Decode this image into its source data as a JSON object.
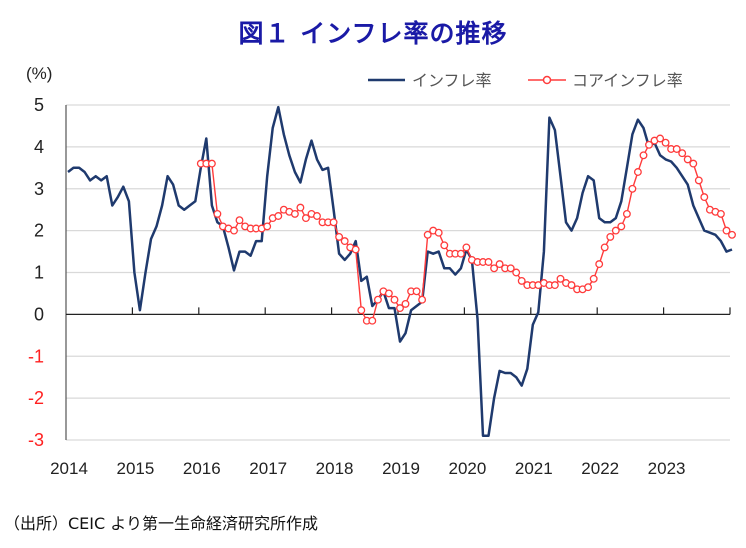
{
  "title": "図１ インフレ率の推移",
  "source": "（出所）CEIC より第一生命経済研究所作成",
  "colors": {
    "inflation": "#1f3a6e",
    "core": "#ff3b3b",
    "title": "#1a1aa6",
    "negative_tick": "#ff2020",
    "positive_tick": "#222222"
  },
  "chart_data": {
    "type": "line",
    "title": "図１ インフレ率の推移",
    "ylabel": "(%)",
    "xlabel": "",
    "ylim": [
      -3,
      5
    ],
    "yticks": [
      "5",
      "4",
      "3",
      "2",
      "1",
      "0",
      "-1",
      "-2",
      "-3"
    ],
    "ytick_values": [
      5,
      4,
      3,
      2,
      1,
      0,
      -1,
      -2,
      -3
    ],
    "xticks": [
      "2014",
      "2015",
      "2016",
      "2017",
      "2018",
      "2019",
      "2020",
      "2021",
      "2022",
      "2023"
    ],
    "x_start": "2014-01",
    "x_frequency": "monthly",
    "grid": true,
    "legend_position": "top-right",
    "series": [
      {
        "name": "インフレ率",
        "marker": "none",
        "start_month_index": 0,
        "values": [
          3.4,
          3.5,
          3.5,
          3.4,
          3.2,
          3.3,
          3.2,
          3.3,
          2.6,
          2.8,
          3.05,
          2.7,
          1.0,
          0.1,
          1.0,
          1.8,
          2.1,
          2.6,
          3.3,
          3.1,
          2.6,
          2.5,
          2.6,
          2.7,
          3.5,
          4.2,
          2.6,
          2.2,
          2.1,
          1.6,
          1.05,
          1.5,
          1.5,
          1.4,
          1.75,
          1.75,
          3.3,
          4.45,
          4.95,
          4.3,
          3.8,
          3.4,
          3.15,
          3.7,
          4.15,
          3.7,
          3.45,
          3.5,
          2.5,
          1.45,
          1.3,
          1.45,
          1.75,
          0.8,
          0.9,
          0.2,
          0.35,
          0.55,
          0.15,
          0.15,
          -0.65,
          -0.45,
          0.1,
          0.2,
          0.3,
          1.5,
          1.45,
          1.5,
          1.1,
          1.1,
          0.95,
          1.1,
          1.55,
          1.3,
          -0.1,
          -2.9,
          -2.9,
          -2.0,
          -1.35,
          -1.4,
          -1.4,
          -1.5,
          -1.7,
          -1.3,
          -0.25,
          0.05,
          1.5,
          4.7,
          4.4,
          3.3,
          2.2,
          2.0,
          2.3,
          2.9,
          3.3,
          3.2,
          2.3,
          2.2,
          2.2,
          2.3,
          2.7,
          3.5,
          4.3,
          4.65,
          4.45,
          4.0,
          4.1,
          3.8,
          3.7,
          3.65,
          3.5,
          3.3,
          3.1,
          2.6,
          2.3,
          2.0,
          1.95,
          1.9,
          1.75,
          1.5,
          1.55
        ]
      },
      {
        "name": "コアインフレ率",
        "marker": "circle",
        "start_month_index": 24,
        "values": [
          3.6,
          3.6,
          3.6,
          2.4,
          2.1,
          2.05,
          2.0,
          2.25,
          2.1,
          2.05,
          2.05,
          2.05,
          2.1,
          2.3,
          2.35,
          2.5,
          2.45,
          2.4,
          2.55,
          2.3,
          2.4,
          2.35,
          2.2,
          2.2,
          2.2,
          1.85,
          1.75,
          1.6,
          1.55,
          0.1,
          -0.15,
          -0.15,
          0.35,
          0.55,
          0.5,
          0.35,
          0.15,
          0.25,
          0.55,
          0.55,
          0.35,
          1.9,
          2.0,
          1.95,
          1.65,
          1.45,
          1.45,
          1.45,
          1.6,
          1.3,
          1.25,
          1.25,
          1.25,
          1.1,
          1.2,
          1.1,
          1.1,
          1.0,
          0.8,
          0.7,
          0.7,
          0.7,
          0.75,
          0.7,
          0.7,
          0.85,
          0.75,
          0.7,
          0.6,
          0.6,
          0.65,
          0.85,
          1.2,
          1.6,
          1.85,
          2.0,
          2.1,
          2.4,
          3.0,
          3.4,
          3.8,
          4.05,
          4.15,
          4.2,
          4.1,
          3.95,
          3.95,
          3.85,
          3.7,
          3.6,
          3.2,
          2.8,
          2.5,
          2.45,
          2.4,
          2.0,
          1.9
        ]
      }
    ]
  }
}
